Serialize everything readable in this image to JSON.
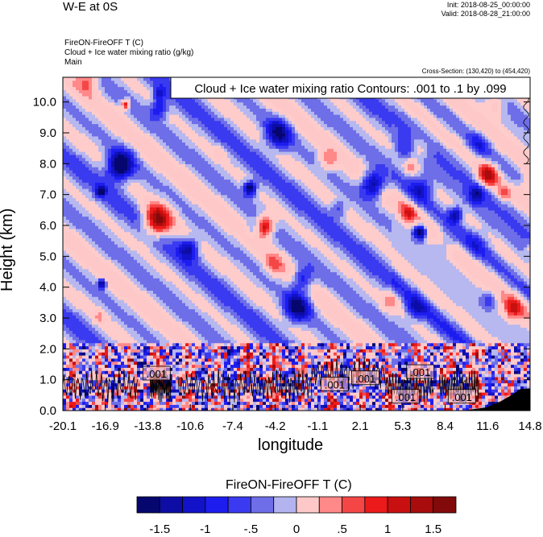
{
  "header": {
    "title": "W-E at 0S",
    "init": "Init: 2018-08-25_00:00:00",
    "valid": "Valid: 2018-08-28_21:00:00",
    "field_line": "FireON-FireOFF T   (C)",
    "contour_line": "Cloud + Ice water mixing ratio   (g/kg)",
    "domain_line": "Main",
    "cross_section": "Cross-Section: (130,420) to (454,420)"
  },
  "chart_data": {
    "type": "heatmap",
    "title": "Cloud + Ice water mixing ratio Contours: .001 to .1 by .099",
    "xlabel": "longitude",
    "ylabel": "Height (km)",
    "x_ticks": [
      "-20.1",
      "-16.9",
      "-13.8",
      "-10.6",
      "-7.4",
      "-4.2",
      "-1.1",
      "2.1",
      "5.3",
      "8.4",
      "11.6",
      "14.8"
    ],
    "y_ticks": [
      "0.0",
      "1.0",
      "2.0",
      "3.0",
      "4.0",
      "5.0",
      "6.0",
      "7.0",
      "8.0",
      "9.0",
      "10.0"
    ],
    "xlim": [
      -20.1,
      14.8
    ],
    "ylim": [
      0.0,
      10.8
    ],
    "contour_labels": [
      {
        "text": ".001",
        "x": -13.1,
        "y": 1.2
      },
      {
        "text": ".001",
        "x": 0.2,
        "y": 0.85
      },
      {
        "text": ".001",
        "x": 2.5,
        "y": 1.05
      },
      {
        "text": ".001",
        "x": 6.6,
        "y": 1.25
      },
      {
        "text": ".001",
        "x": 5.5,
        "y": 0.45
      },
      {
        "text": ".001",
        "x": 9.7,
        "y": 0.45
      }
    ],
    "colorbar": {
      "title": "FireON-FireOFF T  (C)",
      "tick_labels": [
        "-1.5",
        "-1",
        "-.5",
        "0",
        ".5",
        "1",
        "1.5"
      ],
      "tick_values": [
        -1.5,
        -1,
        -0.5,
        0,
        0.5,
        1,
        1.5
      ],
      "colors": [
        "#06066f",
        "#0d0da6",
        "#1212c8",
        "#1d1df0",
        "#3a3af0",
        "#6e6ee8",
        "#b3b3f0",
        "#ffc8c8",
        "#ff8888",
        "#f54646",
        "#ec1a1a",
        "#c81010",
        "#a80c0c",
        "#820a0a"
      ]
    },
    "colors": {
      "neutral_pink": "#ffcccc",
      "neutral_blue": "#b6b8ef",
      "terrain": "#000000"
    }
  }
}
